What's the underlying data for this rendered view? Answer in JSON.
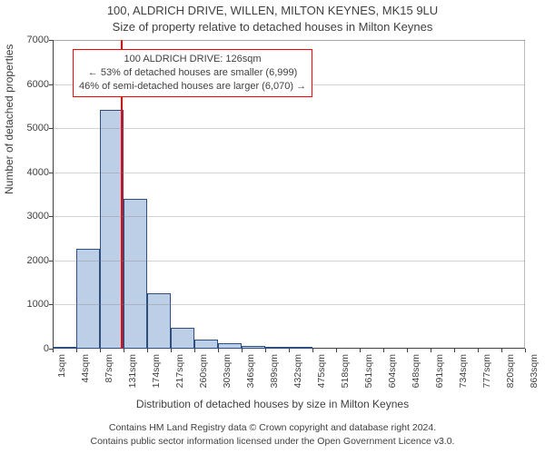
{
  "title_line1": "100, ALDRICH DRIVE, WILLEN, MILTON KEYNES, MK15 9LU",
  "title_line2": "Size of property relative to detached houses in Milton Keynes",
  "chart": {
    "type": "histogram",
    "x_tick_labels": [
      "1sqm",
      "44sqm",
      "87sqm",
      "131sqm",
      "174sqm",
      "217sqm",
      "260sqm",
      "303sqm",
      "346sqm",
      "389sqm",
      "432sqm",
      "475sqm",
      "518sqm",
      "561sqm",
      "604sqm",
      "648sqm",
      "691sqm",
      "734sqm",
      "777sqm",
      "820sqm",
      "863sqm"
    ],
    "x_min": 1,
    "x_max": 863,
    "y_ticks": [
      0,
      1000,
      2000,
      3000,
      4000,
      5000,
      6000,
      7000
    ],
    "y_min": 0,
    "y_max": 7000,
    "bars": [
      {
        "x0": 1,
        "x1": 44,
        "value": 40
      },
      {
        "x0": 44,
        "x1": 87,
        "value": 2260
      },
      {
        "x0": 87,
        "x1": 131,
        "value": 5420
      },
      {
        "x0": 131,
        "x1": 174,
        "value": 3400
      },
      {
        "x0": 174,
        "x1": 217,
        "value": 1260
      },
      {
        "x0": 217,
        "x1": 260,
        "value": 470
      },
      {
        "x0": 260,
        "x1": 303,
        "value": 210
      },
      {
        "x0": 303,
        "x1": 346,
        "value": 120
      },
      {
        "x0": 346,
        "x1": 389,
        "value": 70
      },
      {
        "x0": 389,
        "x1": 432,
        "value": 40
      },
      {
        "x0": 432,
        "x1": 475,
        "value": 20
      },
      {
        "x0": 475,
        "x1": 518,
        "value": 0
      },
      {
        "x0": 518,
        "x1": 561,
        "value": 0
      },
      {
        "x0": 561,
        "x1": 604,
        "value": 0
      },
      {
        "x0": 604,
        "x1": 648,
        "value": 0
      },
      {
        "x0": 648,
        "x1": 691,
        "value": 0
      },
      {
        "x0": 691,
        "x1": 734,
        "value": 0
      },
      {
        "x0": 734,
        "x1": 777,
        "value": 0
      },
      {
        "x0": 777,
        "x1": 820,
        "value": 0
      },
      {
        "x0": 820,
        "x1": 863,
        "value": 0
      }
    ],
    "bar_fill": "#bccfe7",
    "bar_border": "#2d4e7e",
    "grid_color": "#7f7f7f",
    "bg_color": "#ffffff",
    "marker_x": 126,
    "marker_color": "#ff0000",
    "y_label": "Number of detached properties",
    "x_label": "Distribution of detached houses by size in Milton Keynes"
  },
  "annotation": {
    "line1": "100 ALDRICH DRIVE: 126sqm",
    "line2": "← 53% of detached houses are smaller (6,999)",
    "line3": "46% of semi-detached houses are larger (6,070) →",
    "border_color": "#ff0000",
    "bg_color": "#ffffff"
  },
  "footer": {
    "line1": "Contains HM Land Registry data © Crown copyright and database right 2024.",
    "line2": "Contains public sector information licensed under the Open Government Licence v3.0."
  }
}
